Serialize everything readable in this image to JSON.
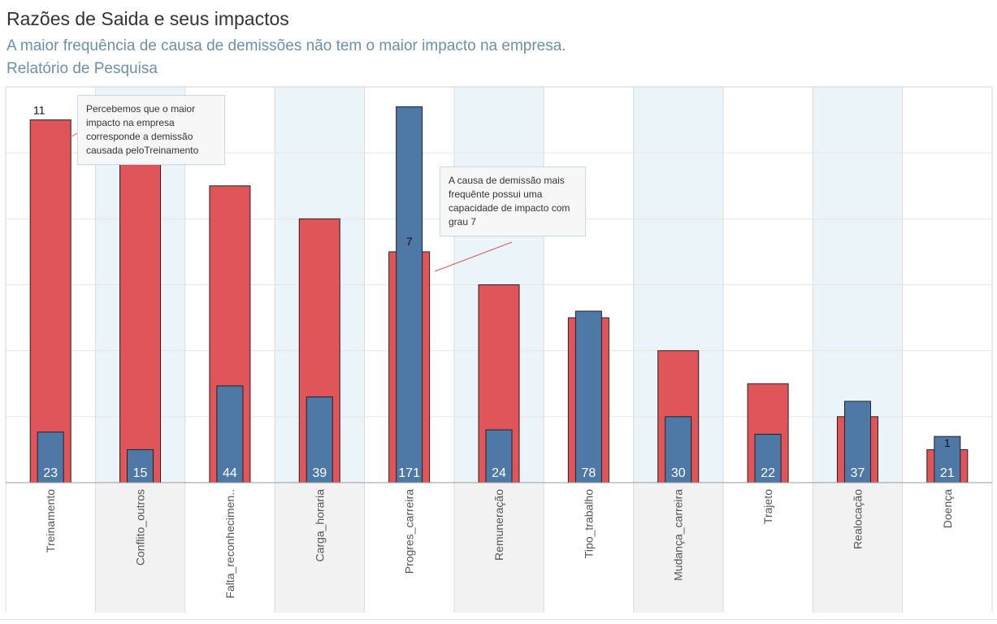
{
  "header": {
    "title": "Razões de Saida e seus impactos",
    "subtitle": "A maior frequência de causa de demissões não tem o maior impacto na empresa.",
    "subtitle2": "Relatório de Pesquisa"
  },
  "annotations": {
    "note1": "Percebemos que o maior impacto na empresa corresponde a demissão causada peloTreinamento",
    "note2": "A causa de demissão mais frequênte possui uma capacidade de impacto com grau 7"
  },
  "colors": {
    "red": "#e0555a",
    "blue": "#4e79a7",
    "band": "#eaf4f9",
    "gray": "#f2f2f2",
    "grid": "#e6e6e6",
    "bar_label": "#ffffff"
  },
  "chart_data": {
    "type": "bar",
    "categories": [
      "Treinamento",
      "Conflito_outros",
      "Falta_reconhecimen..",
      "Carga_horaria",
      "Progres_carreira",
      "Remuneração",
      "Tipo_trabalho",
      "Mudança_carreira",
      "Trajeto",
      "Realocação",
      "Doença"
    ],
    "series": [
      {
        "values": [
          11,
          10,
          9,
          8,
          7,
          6,
          5,
          4,
          3,
          2,
          1
        ]
      },
      {
        "values": [
          23,
          15,
          44,
          39,
          171,
          24,
          78,
          30,
          22,
          37,
          21
        ]
      }
    ],
    "ylim_impact": [
      0,
      12
    ],
    "ylim_frequency": [
      0,
      180
    ],
    "red_value_labels": {
      "Treinamento": "11",
      "Progres_carreira": "7",
      "Doença": "1"
    },
    "grid": true,
    "xlabel": "",
    "ylabel": ""
  }
}
